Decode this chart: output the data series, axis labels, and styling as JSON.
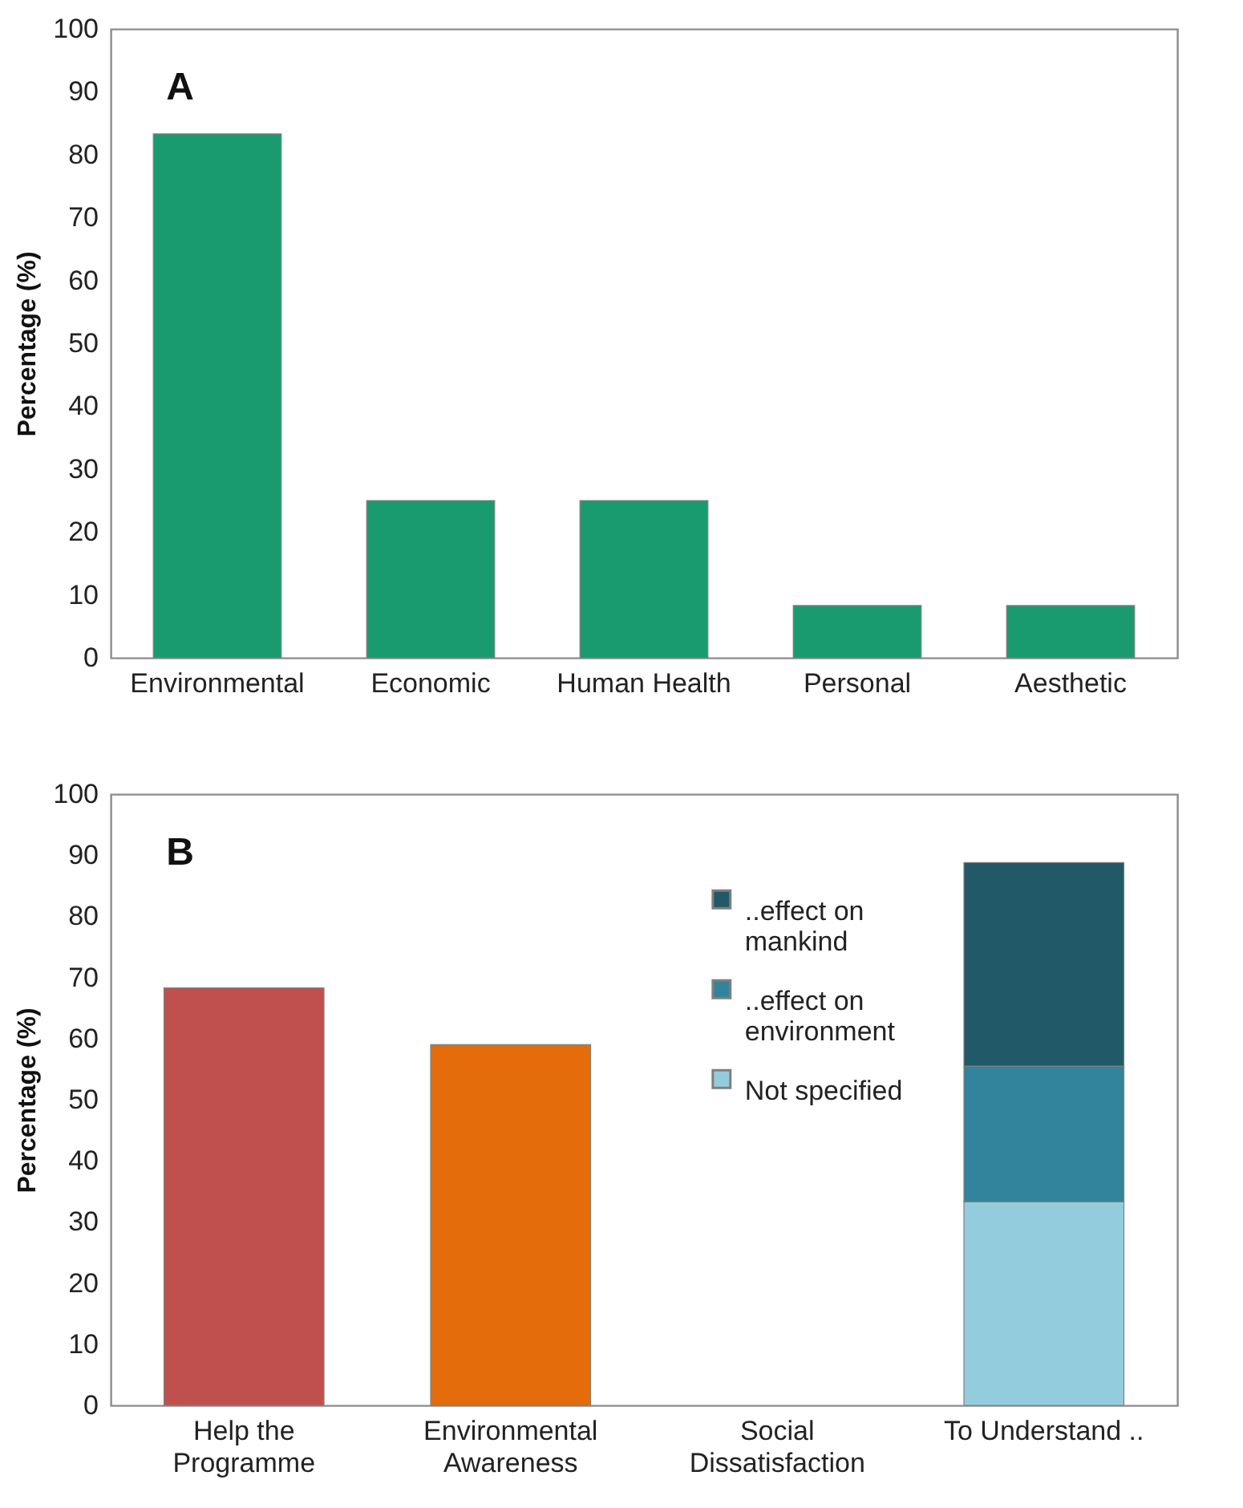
{
  "chart_data": [
    {
      "type": "bar",
      "title": "A",
      "ylabel": "Percentage (%)",
      "categories": [
        "Environmental",
        "Economic",
        "Human Health",
        "Personal",
        "Aesthetic"
      ],
      "values": [
        83.3,
        25,
        25,
        8.3,
        8.3
      ],
      "color": "#1a9b6f",
      "ylim": [
        0,
        100
      ],
      "yticks": [
        0,
        10,
        20,
        30,
        40,
        50,
        60,
        70,
        80,
        90,
        100
      ],
      "grid": false
    },
    {
      "type": "bar",
      "title": "B",
      "ylabel": "Percentage (%)",
      "stacked": true,
      "legend": "top right",
      "categories": [
        "Help the Programme",
        "Environmental Awareness",
        "Social Dissatisfaction",
        "To Understand .."
      ],
      "series": [
        {
          "color": "#c0504d",
          "values": [
            68.3,
            null,
            null,
            null
          ]
        },
        {
          "color": "#e46c0a",
          "values": [
            null,
            59,
            null,
            null
          ]
        },
        {
          "name": "Not specified",
          "color": "#93cddd",
          "values": [
            null,
            null,
            null,
            33.3
          ]
        },
        {
          "name": "..effect on environment",
          "color": "#31849b",
          "values": [
            null,
            null,
            null,
            22.2
          ]
        },
        {
          "name": "..effect on mankind",
          "color": "#215968",
          "values": [
            null,
            null,
            null,
            33.3
          ]
        }
      ],
      "ylim": [
        0,
        100
      ],
      "yticks": [
        0,
        10,
        20,
        30,
        40,
        50,
        60,
        70,
        80,
        90,
        100
      ],
      "grid": false
    }
  ]
}
